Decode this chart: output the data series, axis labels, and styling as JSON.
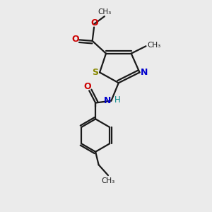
{
  "background_color": "#ebebeb",
  "bond_color": "#1a1a1a",
  "sulfur_color": "#888800",
  "nitrogen_color": "#0000cc",
  "oxygen_color": "#cc0000",
  "h_color": "#008888",
  "figsize": [
    3.0,
    3.0
  ],
  "dpi": 100,
  "xlim": [
    0,
    10
  ],
  "ylim": [
    0,
    10
  ]
}
